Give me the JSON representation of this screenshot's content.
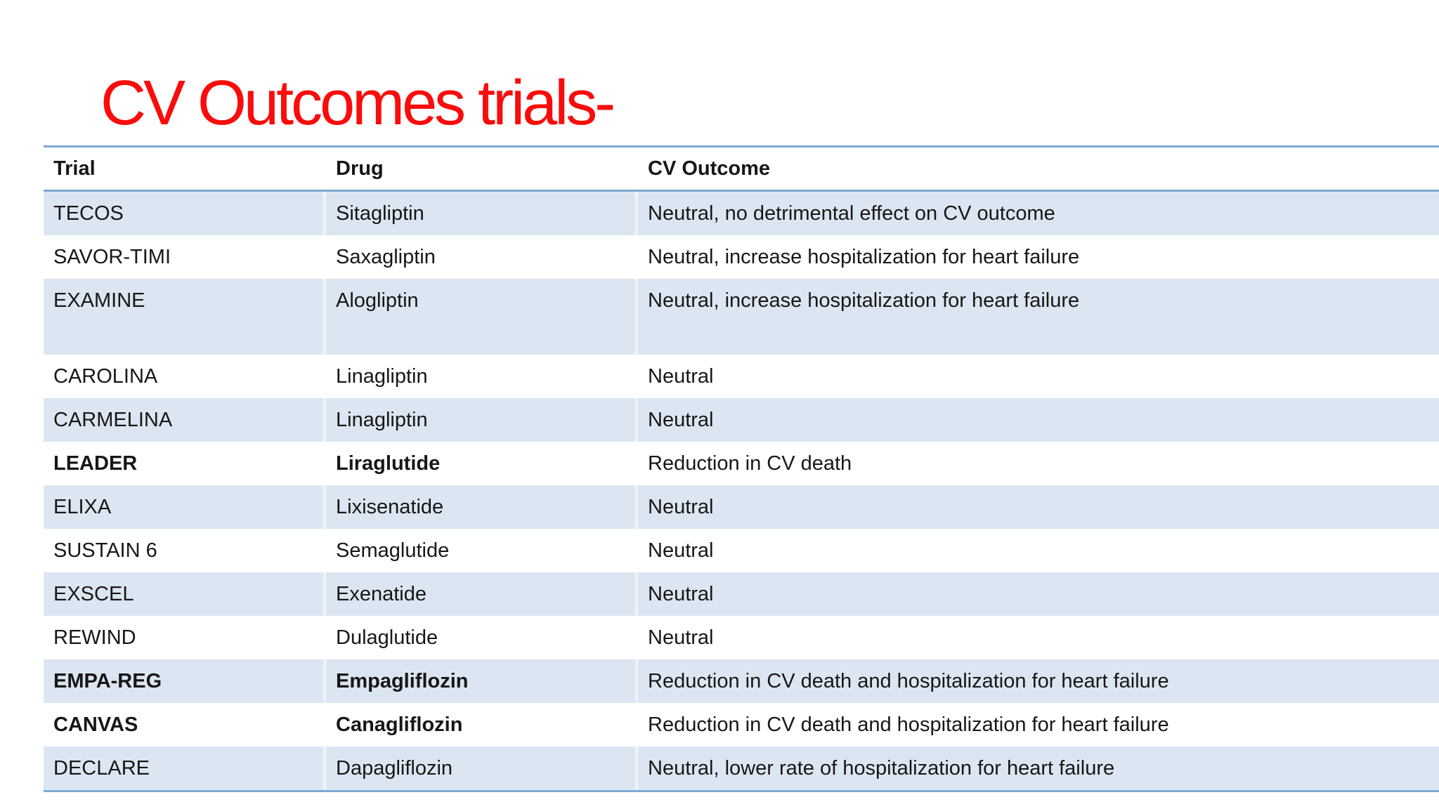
{
  "title": "CV Outcomes trials-",
  "colors": {
    "title": "#fa0c0c",
    "row_shade": "#dce6f2",
    "table_line": "#7fa8d2",
    "text": "#171717"
  },
  "table": {
    "columns": [
      "Trial",
      "Drug",
      "CV Outcome"
    ],
    "rows": [
      {
        "trial": "TECOS",
        "drug": "Sitagliptin",
        "outcome": "Neutral, no detrimental effect on CV outcome",
        "shaded": true,
        "bold": false,
        "tall": false
      },
      {
        "trial": "SAVOR-TIMI",
        "drug": "Saxagliptin",
        "outcome": "Neutral, increase hospitalization for heart failure",
        "shaded": false,
        "bold": false,
        "tall": false
      },
      {
        "trial": "EXAMINE",
        "drug": "Alogliptin",
        "outcome": "Neutral, increase hospitalization for heart failure",
        "shaded": true,
        "bold": false,
        "tall": true
      },
      {
        "trial": "CAROLINA",
        "drug": "Linagliptin",
        "outcome": "Neutral",
        "shaded": false,
        "bold": false,
        "tall": false
      },
      {
        "trial": "CARMELINA",
        "drug": "Linagliptin",
        "outcome": "Neutral",
        "shaded": true,
        "bold": false,
        "tall": false
      },
      {
        "trial": "LEADER",
        "drug": "Liraglutide",
        "outcome": "Reduction in CV death",
        "shaded": false,
        "bold": true,
        "tall": false
      },
      {
        "trial": "ELIXA",
        "drug": "Lixisenatide",
        "outcome": "Neutral",
        "shaded": true,
        "bold": false,
        "tall": false
      },
      {
        "trial": "SUSTAIN 6",
        "drug": "Semaglutide",
        "outcome": "Neutral",
        "shaded": false,
        "bold": false,
        "tall": false
      },
      {
        "trial": "EXSCEL",
        "drug": "Exenatide",
        "outcome": "Neutral",
        "shaded": true,
        "bold": false,
        "tall": false
      },
      {
        "trial": "REWIND",
        "drug": "Dulaglutide",
        "outcome": "Neutral",
        "shaded": false,
        "bold": false,
        "tall": false
      },
      {
        "trial": "EMPA-REG",
        "drug": "Empagliflozin",
        "outcome": "Reduction in CV death and hospitalization for heart failure",
        "shaded": true,
        "bold": true,
        "tall": false
      },
      {
        "trial": "CANVAS",
        "drug": "Canagliflozin",
        "outcome": "Reduction in CV death and hospitalization for heart failure",
        "shaded": false,
        "bold": true,
        "tall": false
      },
      {
        "trial": "DECLARE",
        "drug": "Dapagliflozin",
        "outcome": "Neutral, lower rate of hospitalization for heart failure",
        "shaded": true,
        "bold": false,
        "tall": false
      }
    ]
  }
}
